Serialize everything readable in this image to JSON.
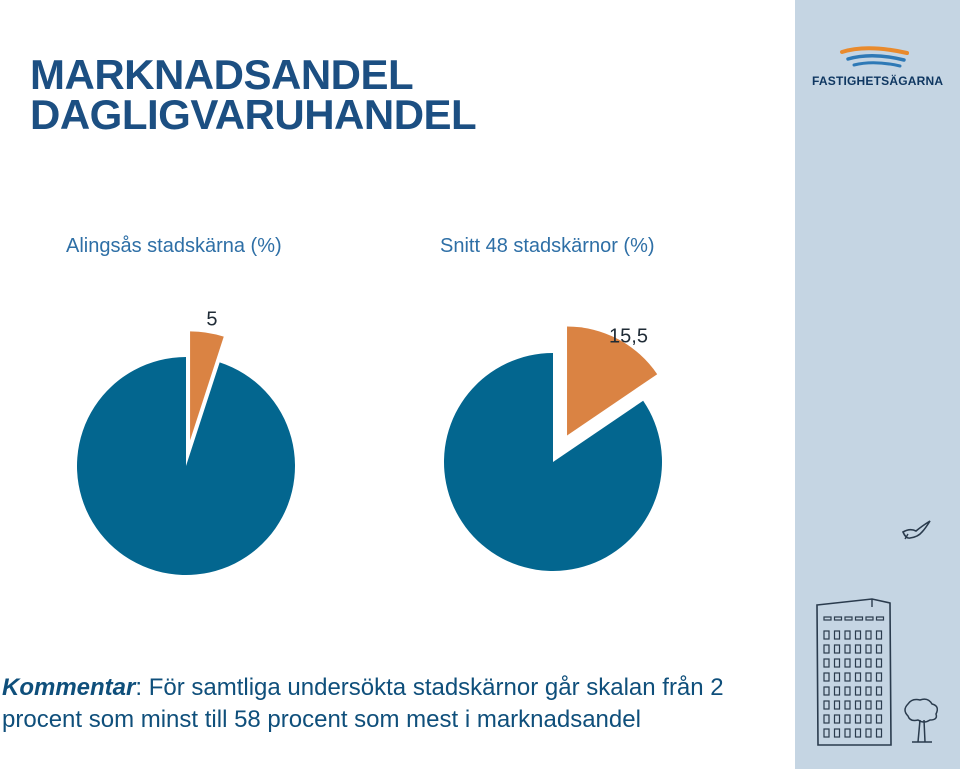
{
  "title": {
    "line1": "MARKNADSANDEL",
    "line2": "DAGLIGVARUHANDEL"
  },
  "logo": {
    "text": "FASTIGHETSÄGARNA"
  },
  "colors": {
    "main_slice": "#03668f",
    "highlight_slice": "#da8343",
    "title": "#1c4f82",
    "sidebar": "#c5d5e3"
  },
  "chart_data": [
    {
      "type": "pie",
      "title": "Alingsås stadskärna (%)",
      "slices": [
        {
          "value": 5,
          "label": "5",
          "color": "#da8343",
          "exploded": true
        },
        {
          "value": 95,
          "label": "",
          "color": "#03668f",
          "exploded": false
        }
      ]
    },
    {
      "type": "pie",
      "title": "Snitt 48 stadskärnor (%)",
      "slices": [
        {
          "value": 15.5,
          "label": "15,5",
          "color": "#da8343",
          "exploded": true
        },
        {
          "value": 84.5,
          "label": "",
          "color": "#03668f",
          "exploded": false
        }
      ]
    }
  ],
  "comment": {
    "label": "Kommentar",
    "text": ": För samtliga undersökta stadskärnor går skalan från 2 procent som minst till 58 procent som mest i marknadsandel"
  },
  "decorations": [
    "bird-icon",
    "building-icon",
    "tree-icon"
  ]
}
